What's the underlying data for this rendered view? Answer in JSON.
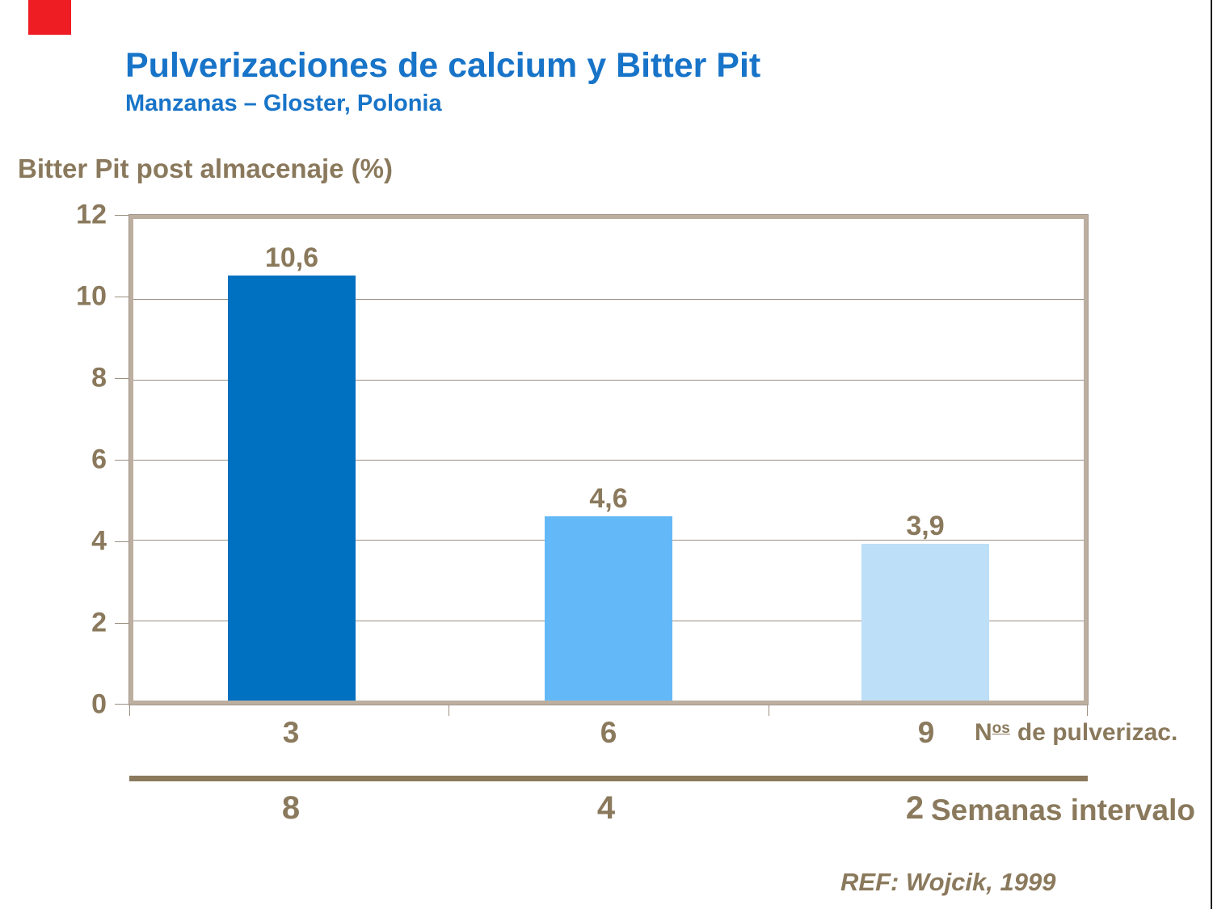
{
  "header": {
    "title": "Pulverizaciones de calcium y Bitter Pit",
    "subtitle": "Manzanas – Gloster, Polonia"
  },
  "chart_data": {
    "type": "bar",
    "title": "Pulverizaciones de calcium y Bitter Pit",
    "subtitle": "Manzanas – Gloster, Polonia",
    "ylabel": "Bitter Pit post almacenaje (%)",
    "ylim": [
      0,
      12
    ],
    "y_ticks": [
      12,
      10,
      8,
      6,
      4,
      2,
      0
    ],
    "grid": "horizontal",
    "legend": "none",
    "categories": [
      "3",
      "6",
      "9"
    ],
    "values": [
      10.6,
      4.6,
      3.9
    ],
    "value_labels": [
      "10,6",
      "4,6",
      "3,9"
    ],
    "bar_colors": [
      "#0070C0",
      "#63B8F8",
      "#BDDFF8"
    ],
    "x_axis_label": "Nos de pulverizac.",
    "secondary_categories": [
      "8",
      "4",
      "2"
    ],
    "secondary_axis_label": "Semanas intervalo",
    "reference": "REF: Wojcik, 1999"
  },
  "axis": {
    "y_tick_labels": [
      "12",
      "10",
      "8",
      "6",
      "4",
      "2",
      "0"
    ],
    "y_title": "Bitter Pit post almacenaje (%)",
    "x_label_prefix": "N",
    "x_label_sup": "os",
    "x_label_rest": "de pulverizac.",
    "categories": [
      "3",
      "6",
      "9"
    ],
    "secondary_values": [
      "8",
      "4",
      "2"
    ],
    "secondary_axis_label": "Semanas intervalo"
  },
  "bars": {
    "label_0": "10,6",
    "label_1": "4,6",
    "label_2": "3,9"
  },
  "footer": {
    "reference": "REF: Wojcik, 1999"
  },
  "colors": {
    "title_blue": "#1874C8",
    "text_brown": "#8A795C",
    "frame_tan": "#BCAFA0",
    "gridline": "#9C9082",
    "accent_red": "#EE1C23",
    "bar_dark_blue": "#0070C0",
    "bar_medium_blue": "#63B8F8",
    "bar_light_blue": "#BDDFF8"
  }
}
